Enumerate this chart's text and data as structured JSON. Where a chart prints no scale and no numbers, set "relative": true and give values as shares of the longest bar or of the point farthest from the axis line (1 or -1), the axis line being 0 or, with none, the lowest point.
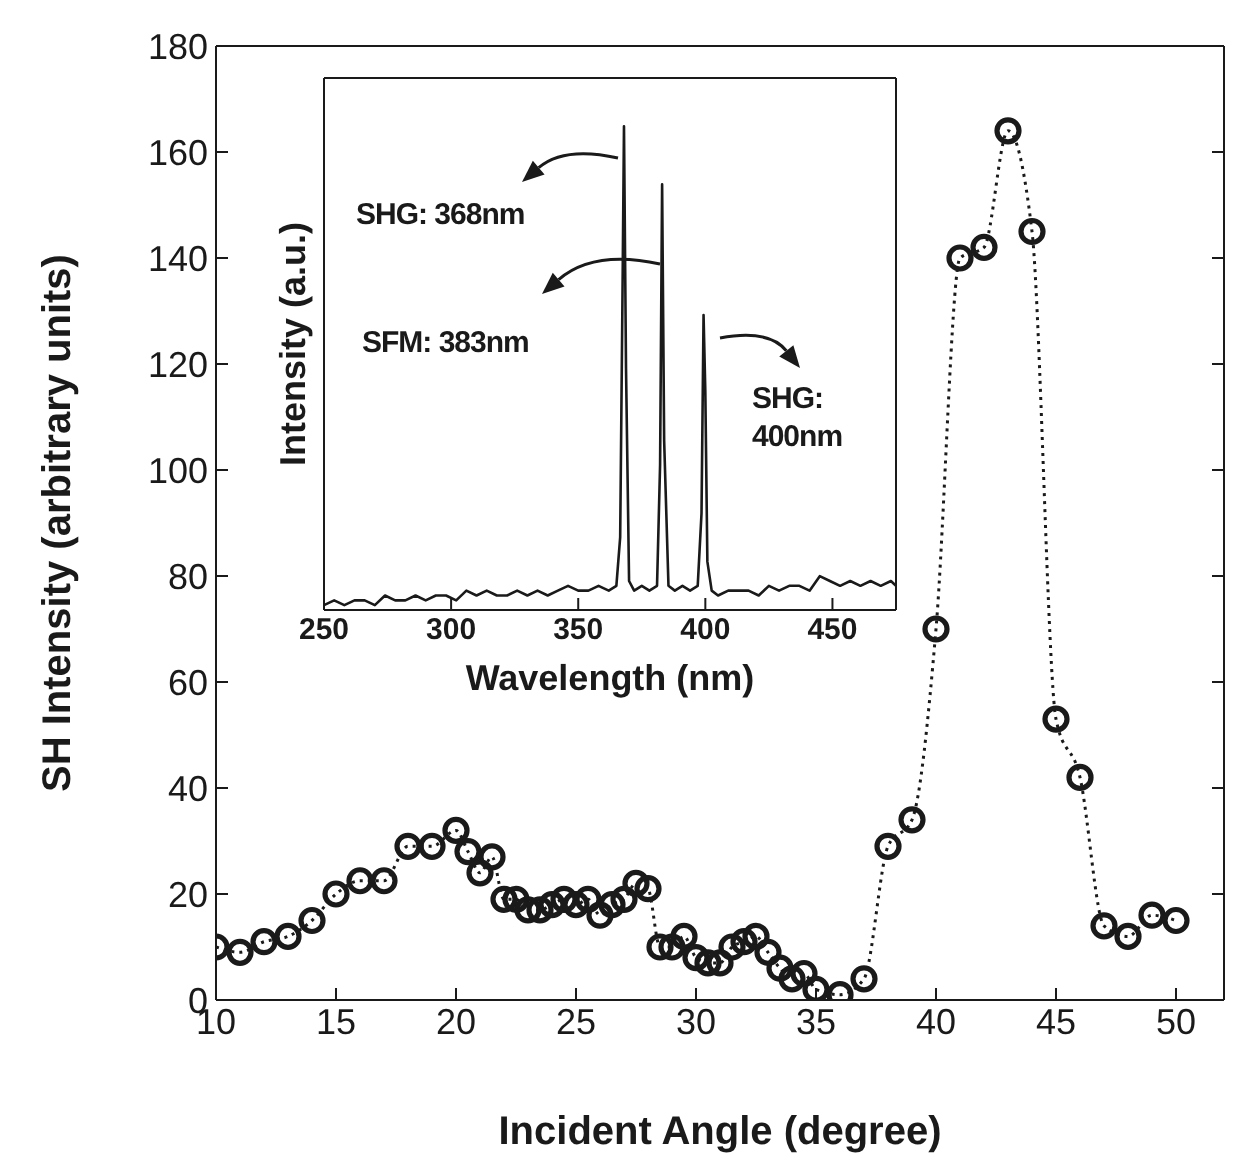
{
  "chart_data": [
    {
      "type": "line",
      "xlabel": "Incident Angle (degree)",
      "ylabel": "SH Intensity (arbitrary units)",
      "xlim": [
        10,
        52
      ],
      "xticks": [
        10,
        15,
        20,
        25,
        30,
        35,
        40,
        45,
        50
      ],
      "ylim": [
        0,
        180
      ],
      "yticks": [
        0,
        20,
        40,
        60,
        80,
        100,
        120,
        140,
        160,
        180
      ],
      "marker": "circle",
      "line_style": "dotted",
      "series": [
        {
          "color": "#1a1a1a",
          "x": [
            10,
            11,
            12,
            13,
            14,
            15,
            16,
            17,
            18,
            19,
            20,
            20.5,
            21,
            21.5,
            22,
            22.5,
            23,
            23.5,
            24,
            24.5,
            25,
            25.5,
            26,
            26.5,
            27,
            27.5,
            28,
            28.5,
            29,
            29.5,
            30,
            30.5,
            31,
            31.5,
            32,
            32.5,
            33,
            33.5,
            34,
            34.5,
            35,
            36,
            37,
            38,
            39,
            40,
            41,
            42,
            43,
            44,
            45,
            46,
            47,
            48,
            49,
            50
          ],
          "values": [
            10,
            9,
            11,
            12,
            15,
            20,
            22.5,
            22.5,
            29,
            29,
            32,
            28,
            24,
            27,
            19,
            19,
            17,
            17,
            18,
            19,
            18,
            19,
            16,
            18,
            19,
            22,
            21,
            10,
            10,
            12,
            8,
            7,
            7,
            10,
            11,
            12,
            9,
            6,
            4,
            5,
            2,
            1,
            4,
            29,
            34,
            70,
            140,
            142,
            164,
            145,
            53,
            42,
            14,
            12,
            16,
            15
          ]
        }
      ]
    },
    {
      "type": "line",
      "relative": true,
      "xlabel": "Wavelength (nm)",
      "ylabel": "Intensity (a.u.)",
      "xlim": [
        250,
        475
      ],
      "xticks": [
        250,
        300,
        350,
        400,
        450
      ],
      "marker": "none",
      "line_style": "solid",
      "annotations": [
        "SHG: 368nm",
        "SFM: 383nm",
        "SHG: 400nm"
      ],
      "series": [
        {
          "color": "#1a1a1a",
          "x": [
            250,
            254,
            258,
            262,
            266,
            270,
            274,
            278,
            282,
            286,
            290,
            294,
            298,
            302,
            306,
            310,
            314,
            318,
            322,
            326,
            330,
            334,
            338,
            342,
            346,
            350,
            354,
            358,
            362,
            365,
            366.5,
            367.5,
            368,
            368.8,
            370,
            372,
            375,
            378,
            381,
            382.2,
            383,
            383.8,
            385.5,
            388,
            391,
            394,
            397,
            398.5,
            399.3,
            400,
            400.8,
            402.5,
            405,
            409,
            413,
            417,
            421,
            425,
            429,
            433,
            437,
            441,
            445,
            449,
            453,
            457,
            461,
            465,
            469,
            473,
            475
          ],
          "values": [
            0.01,
            0.02,
            0.01,
            0.02,
            0.02,
            0.01,
            0.03,
            0.02,
            0.02,
            0.03,
            0.02,
            0.03,
            0.03,
            0.02,
            0.04,
            0.03,
            0.04,
            0.03,
            0.03,
            0.04,
            0.03,
            0.04,
            0.03,
            0.04,
            0.05,
            0.04,
            0.04,
            0.05,
            0.04,
            0.05,
            0.15,
            0.7,
            1,
            0.5,
            0.06,
            0.04,
            0.05,
            0.04,
            0.05,
            0.3,
            0.88,
            0.35,
            0.05,
            0.04,
            0.05,
            0.04,
            0.05,
            0.2,
            0.61,
            0.45,
            0.1,
            0.04,
            0.03,
            0.04,
            0.04,
            0.04,
            0.03,
            0.05,
            0.04,
            0.05,
            0.05,
            0.04,
            0.07,
            0.06,
            0.05,
            0.06,
            0.05,
            0.06,
            0.05,
            0.06,
            0.05
          ]
        }
      ]
    }
  ]
}
